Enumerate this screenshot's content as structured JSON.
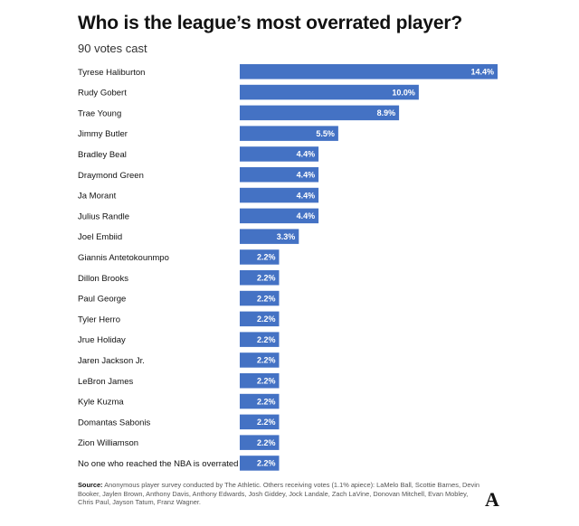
{
  "header": {
    "title": "Who is the league’s most overrated player?",
    "subtitle": "90 votes cast"
  },
  "chart_data": {
    "type": "bar",
    "orientation": "horizontal",
    "title": "Who is the league’s most overrated player?",
    "subtitle": "90 votes cast",
    "categories": [
      "Tyrese Haliburton",
      "Rudy Gobert",
      "Trae Young",
      "Jimmy Butler",
      "Bradley Beal",
      "Draymond Green",
      "Ja Morant",
      "Julius Randle",
      "Joel Embiid",
      "Giannis Antetokounmpo",
      "Dillon Brooks",
      "Paul George",
      "Tyler Herro",
      "Jrue Holiday",
      "Jaren Jackson Jr.",
      "LeBron James",
      "Kyle Kuzma",
      "Domantas Sabonis",
      "Zion Williamson",
      "No one who reached the NBA is overrated"
    ],
    "values": [
      14.4,
      10.0,
      8.9,
      5.5,
      4.4,
      4.4,
      4.4,
      4.4,
      3.3,
      2.2,
      2.2,
      2.2,
      2.2,
      2.2,
      2.2,
      2.2,
      2.2,
      2.2,
      2.2,
      2.2
    ],
    "value_labels": [
      "14.4%",
      "10.0%",
      "8.9%",
      "5.5%",
      "4.4%",
      "4.4%",
      "4.4%",
      "4.4%",
      "3.3%",
      "2.2%",
      "2.2%",
      "2.2%",
      "2.2%",
      "2.2%",
      "2.2%",
      "2.2%",
      "2.2%",
      "2.2%",
      "2.2%",
      "2.2%"
    ],
    "unit": "%",
    "bar_color": "#4472c4",
    "grid": false,
    "legend": "none"
  },
  "footer": {
    "source_key": "Source:",
    "source_text": "Anonymous player survey conducted by The Athletic. Others receiving votes (1.1% apiece): LaMelo Ball, Scottie Barnes, Devin Booker, Jaylen Brown, Anthony Davis, Anthony Edwards, Josh Giddey, Jock Landale, Zach LaVine, Donovan Mitchell, Evan Mobley, Chris Paul, Jayson Tatum, Franz Wagner.",
    "logo_text": "A",
    "logo_icon": "the-athletic-logo"
  }
}
